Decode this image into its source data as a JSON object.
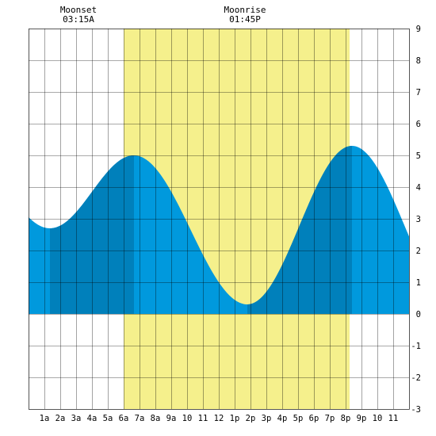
{
  "chart_data": {
    "type": "area",
    "moon_events": [
      {
        "label": "Moonset",
        "time": "03:15A",
        "hour": 3.25
      },
      {
        "label": "Moonrise",
        "time": "01:45P",
        "hour": 13.75
      }
    ],
    "daylight": {
      "start_hour": 6.0,
      "end_hour": 20.25
    },
    "tide_extremes": [
      {
        "type": "low",
        "hour": 1.35,
        "height": 2.7
      },
      {
        "type": "high",
        "hour": 6.65,
        "height": 5.0
      },
      {
        "type": "low",
        "hour": 13.8,
        "height": 0.3
      },
      {
        "type": "high",
        "hour": 20.4,
        "height": 5.3
      }
    ],
    "series_span": {
      "start_hour": 0.0,
      "end_hour": 24.0,
      "start_height": 3.0,
      "end_height": 3.4
    },
    "darker_bands": [
      [
        1.35,
        6.65
      ],
      [
        13.8,
        20.4
      ]
    ],
    "xlim": [
      0,
      24
    ],
    "ylim": [
      -3,
      9
    ],
    "x_ticks": [
      {
        "hour": 1,
        "label": "1a"
      },
      {
        "hour": 2,
        "label": "2a"
      },
      {
        "hour": 3,
        "label": "3a"
      },
      {
        "hour": 4,
        "label": "4a"
      },
      {
        "hour": 5,
        "label": "5a"
      },
      {
        "hour": 6,
        "label": "6a"
      },
      {
        "hour": 7,
        "label": "7a"
      },
      {
        "hour": 8,
        "label": "8a"
      },
      {
        "hour": 9,
        "label": "9a"
      },
      {
        "hour": 10,
        "label": "10"
      },
      {
        "hour": 11,
        "label": "11"
      },
      {
        "hour": 12,
        "label": "12"
      },
      {
        "hour": 13,
        "label": "1p"
      },
      {
        "hour": 14,
        "label": "2p"
      },
      {
        "hour": 15,
        "label": "3p"
      },
      {
        "hour": 16,
        "label": "4p"
      },
      {
        "hour": 17,
        "label": "5p"
      },
      {
        "hour": 18,
        "label": "6p"
      },
      {
        "hour": 19,
        "label": "7p"
      },
      {
        "hour": 20,
        "label": "8p"
      },
      {
        "hour": 21,
        "label": "9p"
      },
      {
        "hour": 22,
        "label": "10"
      },
      {
        "hour": 23,
        "label": "11"
      }
    ],
    "y_ticks": [
      9,
      8,
      7,
      6,
      5,
      4,
      3,
      2,
      1,
      0,
      -1,
      -2,
      -3
    ],
    "grid": true,
    "colors": {
      "daylight": "#f5f08c",
      "water": "#0099dd",
      "water_dark": "#0080bb",
      "grid": "#000000",
      "background": "#ffffff"
    }
  }
}
